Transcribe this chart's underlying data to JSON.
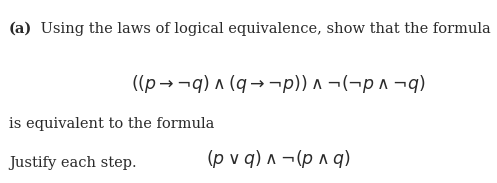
{
  "bg_color": "#ffffff",
  "label_a": "(a)",
  "line1_text": " Using the laws of logical equivalence, show that the formula",
  "formula1": "$((p \\rightarrow \\neg q) \\wedge (q \\rightarrow \\neg p)) \\wedge \\neg(\\neg p \\wedge \\neg q)$",
  "line2_text": "is equivalent to the formula",
  "formula2": "$(p \\vee q) \\wedge \\neg(p \\wedge q)$",
  "line3_text": "Justify each step.",
  "font_size_text": 10.5,
  "font_size_formula": 12.5,
  "text_color": "#2a2a2a"
}
